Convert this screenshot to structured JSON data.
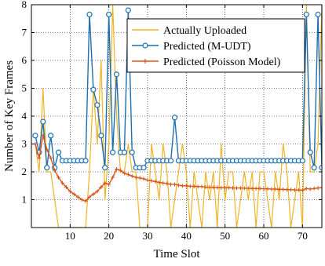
{
  "chart_data": {
    "type": "line",
    "xlabel": "Time Slot",
    "ylabel": "Number of Key Frames",
    "xlim": [
      0,
      75
    ],
    "ylim": [
      0,
      8
    ],
    "xticks": [
      10,
      20,
      30,
      40,
      50,
      60,
      70
    ],
    "yticks": [
      1,
      2,
      3,
      4,
      5,
      6,
      7,
      8
    ],
    "grid": true,
    "legend_position": "top-right",
    "series": [
      {
        "name": "Actually Uploaded",
        "color": "#f0b323",
        "marker": "none",
        "x": [
          1,
          2,
          3,
          4,
          5,
          6,
          7,
          8,
          9,
          10,
          11,
          12,
          13,
          14,
          15,
          16,
          17,
          18,
          19,
          20,
          21,
          22,
          23,
          24,
          25,
          26,
          27,
          28,
          29,
          30,
          31,
          32,
          33,
          34,
          35,
          36,
          37,
          38,
          39,
          40,
          41,
          42,
          43,
          44,
          45,
          46,
          47,
          48,
          49,
          50,
          51,
          52,
          53,
          54,
          55,
          56,
          57,
          58,
          59,
          60,
          61,
          62,
          63,
          64,
          65,
          66,
          67,
          68,
          69,
          70,
          71,
          72,
          73,
          74,
          75
        ],
        "y": [
          3,
          2,
          5,
          2,
          2,
          1,
          0,
          0,
          0,
          0,
          0,
          0,
          0,
          0,
          2,
          5,
          3,
          6,
          1,
          3,
          8,
          4,
          2,
          2,
          3,
          2,
          2,
          0,
          0,
          0,
          3,
          2,
          1,
          3,
          2,
          0,
          1,
          2,
          3,
          2,
          0,
          2,
          1,
          0,
          2,
          1,
          2,
          0,
          3,
          1,
          2,
          2,
          0,
          1,
          2,
          1,
          2,
          0,
          2,
          2,
          1,
          0,
          2,
          1,
          3,
          2,
          0,
          1,
          2,
          0,
          8,
          2,
          2,
          3,
          8
        ]
      },
      {
        "name": "Predicted (M-UDT)",
        "color": "#1f6fb0",
        "marker": "circle",
        "x": [
          1,
          2,
          3,
          4,
          5,
          6,
          7,
          8,
          9,
          10,
          11,
          12,
          13,
          14,
          15,
          16,
          17,
          18,
          19,
          20,
          21,
          22,
          23,
          24,
          25,
          26,
          27,
          28,
          29,
          30,
          31,
          32,
          33,
          34,
          35,
          36,
          37,
          38,
          39,
          40,
          41,
          42,
          43,
          44,
          45,
          46,
          47,
          48,
          49,
          50,
          51,
          52,
          53,
          54,
          55,
          56,
          57,
          58,
          59,
          60,
          61,
          62,
          63,
          64,
          65,
          66,
          67,
          68,
          69,
          70,
          71,
          72,
          73,
          74,
          75
        ],
        "y": [
          3.3,
          2.7,
          3.8,
          2.15,
          3.3,
          2.15,
          2.7,
          2.4,
          2.4,
          2.4,
          2.4,
          2.4,
          2.4,
          2.4,
          7.65,
          4.95,
          4.4,
          3.3,
          2.15,
          7.65,
          2.7,
          5.5,
          2.7,
          2.7,
          7.8,
          2.7,
          2.15,
          2.15,
          2.15,
          2.4,
          2.4,
          2.4,
          2.4,
          2.4,
          2.4,
          2.4,
          3.95,
          2.4,
          2.4,
          2.4,
          2.4,
          2.4,
          2.4,
          2.4,
          2.4,
          2.4,
          2.4,
          2.4,
          2.4,
          2.4,
          2.4,
          2.4,
          2.4,
          2.4,
          2.4,
          2.4,
          2.4,
          2.4,
          2.4,
          2.4,
          2.4,
          2.4,
          2.4,
          2.4,
          2.4,
          2.4,
          2.4,
          2.4,
          2.4,
          2.4,
          7.65,
          2.7,
          2.15,
          7.65,
          2.15
        ]
      },
      {
        "name": "Predicted (Poisson Model)",
        "color": "#d9541a",
        "marker": "plus",
        "x": [
          1,
          2,
          3,
          4,
          5,
          6,
          7,
          8,
          9,
          10,
          11,
          12,
          13,
          14,
          15,
          16,
          17,
          18,
          19,
          20,
          21,
          22,
          23,
          24,
          25,
          26,
          27,
          28,
          29,
          30,
          31,
          32,
          33,
          34,
          35,
          36,
          37,
          38,
          39,
          40,
          41,
          42,
          43,
          44,
          45,
          46,
          47,
          48,
          49,
          50,
          51,
          52,
          53,
          54,
          55,
          56,
          57,
          58,
          59,
          60,
          61,
          62,
          63,
          64,
          65,
          66,
          67,
          68,
          69,
          70,
          71,
          72,
          73,
          74,
          75
        ],
        "y": [
          3,
          2.5,
          3.3,
          2.8,
          2.5,
          2.05,
          1.8,
          1.6,
          1.45,
          1.3,
          1.2,
          1.1,
          1.0,
          0.95,
          1.1,
          1.2,
          1.3,
          1.45,
          1.6,
          1.55,
          1.8,
          2.1,
          2.05,
          1.95,
          1.9,
          1.85,
          1.8,
          1.78,
          1.75,
          1.7,
          1.68,
          1.65,
          1.62,
          1.6,
          1.58,
          1.55,
          1.55,
          1.52,
          1.5,
          1.5,
          1.48,
          1.48,
          1.47,
          1.47,
          1.45,
          1.45,
          1.44,
          1.44,
          1.43,
          1.43,
          1.43,
          1.42,
          1.42,
          1.42,
          1.41,
          1.41,
          1.4,
          1.4,
          1.4,
          1.39,
          1.39,
          1.38,
          1.38,
          1.37,
          1.37,
          1.36,
          1.36,
          1.35,
          1.35,
          1.34,
          1.4,
          1.38,
          1.4,
          1.42,
          1.43
        ]
      }
    ]
  }
}
